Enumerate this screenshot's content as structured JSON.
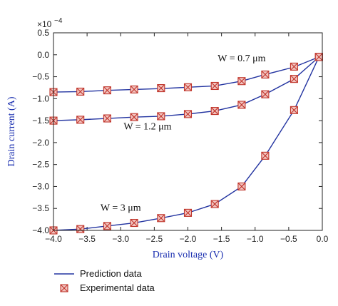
{
  "chart_data": {
    "type": "line",
    "xlabel": "Drain voltage (V)",
    "ylabel": "Drain current (A)",
    "y_multiplier": "×10",
    "y_exponent": "−4",
    "xlim": [
      -4.0,
      0.0
    ],
    "ylim": [
      -4.0,
      0.5
    ],
    "grid": false,
    "legend_position": "bottom-left, below plot",
    "x_ticks": [
      -4.0,
      -3.5,
      -3.0,
      -2.5,
      -2.0,
      -1.5,
      -1.0,
      -0.5,
      0.0
    ],
    "x_tick_labels": [
      "−4.0",
      "−3.5",
      "−3.0",
      "−2.5",
      "−2.0",
      "−1.5",
      "−1.0",
      "−0.5",
      "0.0"
    ],
    "y_ticks": [
      -4.0,
      -3.5,
      -3.0,
      -2.5,
      -2.0,
      -1.5,
      -1.0,
      -0.5,
      0.0,
      0.5
    ],
    "y_tick_labels": [
      "−4.0",
      "−3.5",
      "−3.0",
      "−2.5",
      "−2.0",
      "−1.5",
      "−1.0",
      "−0.5",
      "0.0",
      "0.5"
    ],
    "legend": {
      "line_label": "Prediction data",
      "marker_label": "Experimental data"
    },
    "annotations": [
      {
        "text": "W = 0.7 μm",
        "x": -1.2,
        "y": -0.15
      },
      {
        "text": "W = 1.2 μm",
        "x": -2.6,
        "y": -1.7
      },
      {
        "text": "W = 3 μm",
        "x": -3.0,
        "y": -3.55
      }
    ],
    "series": [
      {
        "x": [
          -4.0,
          -3.6,
          -3.2,
          -2.8,
          -2.4,
          -2.0,
          -1.6,
          -1.2,
          -0.85,
          -0.42,
          -0.05
        ],
        "prediction": [
          -0.85,
          -0.84,
          -0.81,
          -0.79,
          -0.77,
          -0.74,
          -0.71,
          -0.6,
          -0.45,
          -0.28,
          -0.05
        ],
        "experimental": [
          -0.85,
          -0.84,
          -0.81,
          -0.79,
          -0.76,
          -0.74,
          -0.71,
          -0.6,
          -0.45,
          -0.27,
          -0.05
        ]
      },
      {
        "x": [
          -4.0,
          -3.6,
          -3.2,
          -2.8,
          -2.4,
          -2.0,
          -1.6,
          -1.2,
          -0.85,
          -0.42,
          -0.05
        ],
        "prediction": [
          -1.5,
          -1.48,
          -1.45,
          -1.42,
          -1.4,
          -1.35,
          -1.28,
          -1.14,
          -0.9,
          -0.55,
          -0.05
        ],
        "experimental": [
          -1.5,
          -1.48,
          -1.45,
          -1.42,
          -1.4,
          -1.35,
          -1.28,
          -1.14,
          -0.9,
          -0.55,
          -0.05
        ]
      },
      {
        "x": [
          -4.0,
          -3.6,
          -3.2,
          -2.8,
          -2.4,
          -2.0,
          -1.6,
          -1.2,
          -0.85,
          -0.42,
          -0.05
        ],
        "prediction": [
          -4.0,
          -3.97,
          -3.9,
          -3.83,
          -3.72,
          -3.6,
          -3.4,
          -3.0,
          -2.3,
          -1.26,
          -0.05
        ],
        "experimental": [
          -4.0,
          -3.97,
          -3.9,
          -3.83,
          -3.72,
          -3.6,
          -3.4,
          -3.0,
          -2.3,
          -1.26,
          -0.05
        ]
      }
    ],
    "colors": {
      "line": "#2233a0",
      "marker_stroke": "#c0352b",
      "marker_fill": "#f2c4c0",
      "axis": "#222222",
      "axis_title": "#1a2fb0"
    }
  }
}
